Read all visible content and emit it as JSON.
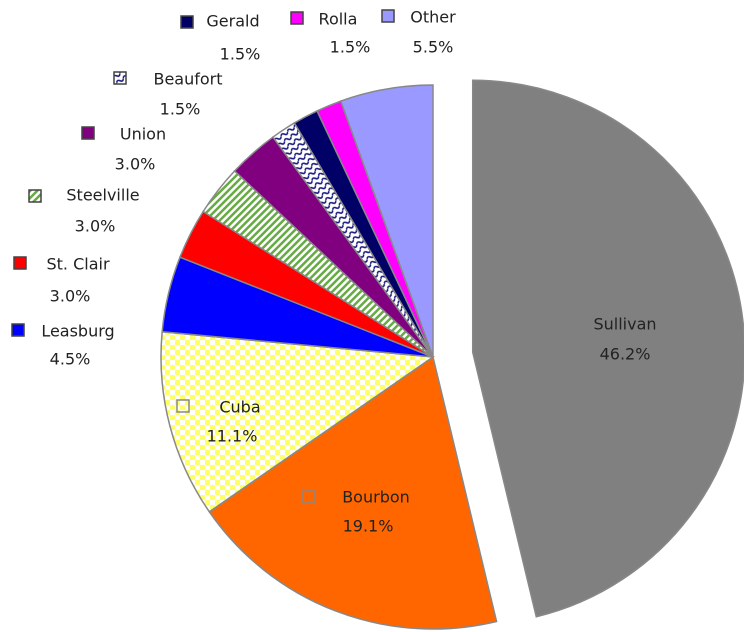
{
  "chart_data": {
    "type": "pie",
    "categories": [
      "Sullivan",
      "Bourbon",
      "Cuba",
      "Leasburg",
      "St. Clair",
      "Steelville",
      "Union",
      "Beaufort",
      "Gerald",
      "Rolla",
      "Other"
    ],
    "values": [
      46.2,
      19.1,
      11.1,
      4.5,
      3.0,
      3.0,
      3.0,
      1.5,
      1.5,
      1.5,
      5.5
    ],
    "value_labels": [
      "46.2%",
      "19.1%",
      "11.1%",
      "4.5%",
      "3.0%",
      "3.0%",
      "3.0%",
      "1.5%",
      "1.5%",
      "1.5%",
      "5.5%"
    ],
    "colors": [
      "#808080",
      "#ff6600",
      "#ffff66",
      "#0000ff",
      "#ff0000",
      "#66aa44",
      "#800080",
      "#1a1a80",
      "#000066",
      "#ff00ff",
      "#9999ff"
    ],
    "exploded": [
      "Sullivan"
    ]
  }
}
